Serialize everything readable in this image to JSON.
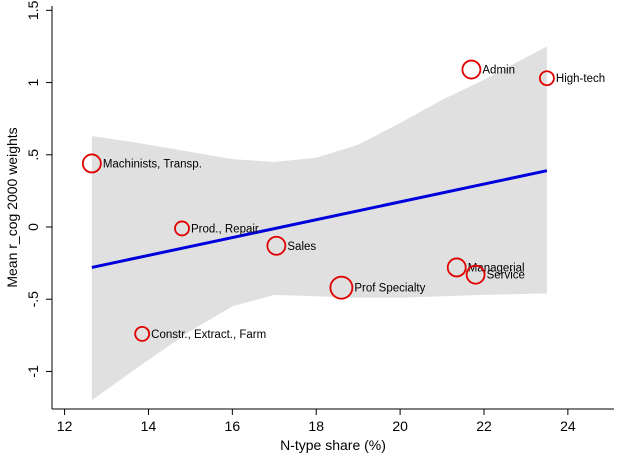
{
  "chart_data": {
    "type": "scatter",
    "xlabel": "N-type share (%)",
    "ylabel": "Mean r_cog 2000 weights",
    "xlim": [
      11.7,
      25.1
    ],
    "ylim": [
      -1.26,
      1.53
    ],
    "xticks": [
      "12",
      "14",
      "16",
      "18",
      "20",
      "22",
      "24"
    ],
    "yticks": [
      "-1",
      "-.5",
      "0",
      ".5",
      "1",
      "1.5"
    ],
    "grid": false,
    "legend": "none",
    "colors": {
      "markers": "#e00000",
      "fit_line": "#0000dd",
      "ci_band": "#e0e0e0"
    },
    "points": [
      {
        "label": "Machinists, Transp.",
        "x": 12.65,
        "y": 0.44,
        "size": 3
      },
      {
        "label": "Constr., Extract., Farm",
        "x": 13.85,
        "y": -0.74,
        "size": 2
      },
      {
        "label": "Prod., Repair",
        "x": 14.8,
        "y": -0.01,
        "size": 2
      },
      {
        "label": "Sales",
        "x": 17.05,
        "y": -0.13,
        "size": 3
      },
      {
        "label": "Prof Specialty",
        "x": 18.6,
        "y": -0.42,
        "size": 4
      },
      {
        "label": "Managerial",
        "x": 21.35,
        "y": -0.28,
        "size": 3
      },
      {
        "label": "Service",
        "x": 21.8,
        "y": -0.33,
        "size": 3
      },
      {
        "label": "Admin",
        "x": 21.7,
        "y": 1.09,
        "size": 3
      },
      {
        "label": "High-tech",
        "x": 23.5,
        "y": 1.03,
        "size": 2
      }
    ],
    "fit": {
      "x": [
        12.65,
        23.5
      ],
      "y": [
        -0.28,
        0.39
      ]
    },
    "ci": {
      "x": [
        12.65,
        13.8,
        15.0,
        16.0,
        17.0,
        18.0,
        19.0,
        20.0,
        21.0,
        22.0,
        23.5
      ],
      "upper": [
        0.63,
        0.58,
        0.52,
        0.47,
        0.45,
        0.48,
        0.57,
        0.72,
        0.88,
        1.02,
        1.25
      ],
      "lower": [
        -1.2,
        -0.96,
        -0.72,
        -0.55,
        -0.47,
        -0.48,
        -0.49,
        -0.49,
        -0.48,
        -0.47,
        -0.46
      ]
    }
  }
}
